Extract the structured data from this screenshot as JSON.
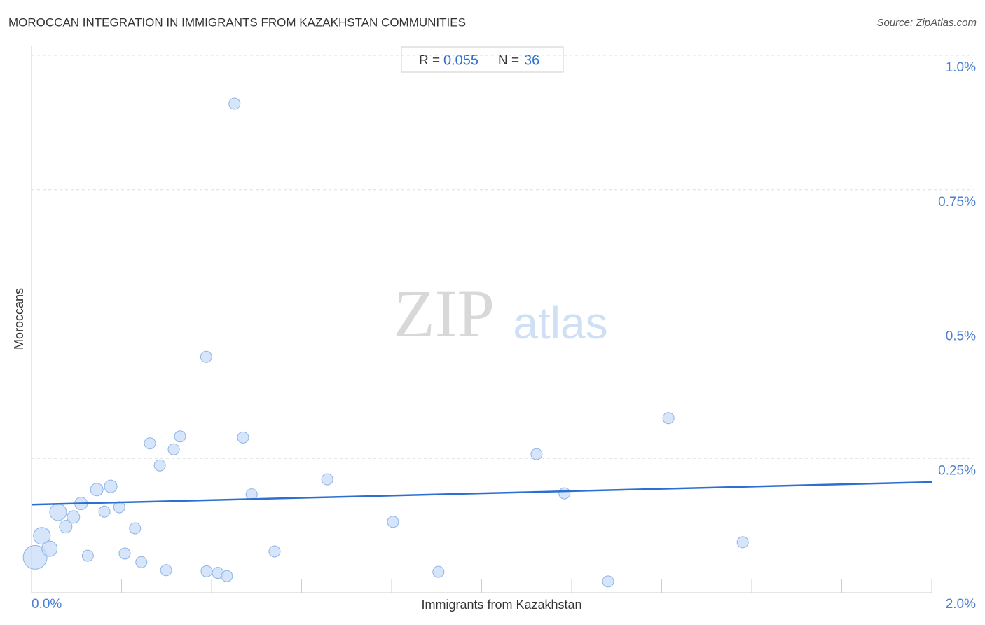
{
  "chart_data": {
    "type": "scatter",
    "title": "MOROCCAN INTEGRATION IN IMMIGRANTS FROM KAZAKHSTAN COMMUNITIES",
    "source": "Source: ZipAtlas.com",
    "x_label": "Immigrants from Kazakhstan",
    "y_label": "Moroccans",
    "watermark": {
      "zip": "ZIP",
      "atlas": "atlas"
    },
    "stats": {
      "r_label": "R =",
      "r": 0.055,
      "n_label": "N =",
      "n": 36
    },
    "xlim": [
      0,
      2.0
    ],
    "ylim": [
      0,
      1.0
    ],
    "xticks": [
      {
        "value": 0,
        "label": "0.0%"
      },
      {
        "value": 2.0,
        "label": "2.0%"
      }
    ],
    "xminorticks": [
      0.2,
      0.4,
      0.6,
      0.8,
      1.0,
      1.2,
      1.4,
      1.6,
      1.8,
      2.0
    ],
    "yticks": [
      {
        "value": 1.0,
        "label": "1.0%"
      },
      {
        "value": 0.75,
        "label": "0.75%"
      },
      {
        "value": 0.5,
        "label": "0.5%"
      },
      {
        "value": 0.25,
        "label": "0.25%"
      }
    ],
    "grid": true,
    "color": "#c5daf6",
    "stroke": "#8db4e6",
    "trend_color": "#2a6fd1",
    "trend": {
      "x": [
        0,
        2.0
      ],
      "y": [
        0.164,
        0.206
      ]
    },
    "x": [
      0.008,
      0.023,
      0.04,
      0.059,
      0.076,
      0.093,
      0.11,
      0.125,
      0.145,
      0.162,
      0.176,
      0.195,
      0.207,
      0.23,
      0.244,
      0.263,
      0.285,
      0.299,
      0.316,
      0.33,
      0.388,
      0.389,
      0.414,
      0.434,
      0.451,
      0.47,
      0.489,
      0.54,
      0.657,
      0.803,
      0.904,
      1.122,
      1.184,
      1.281,
      1.415,
      1.58
    ],
    "y": [
      0.066,
      0.106,
      0.082,
      0.15,
      0.123,
      0.141,
      0.166,
      0.069,
      0.192,
      0.151,
      0.198,
      0.159,
      0.073,
      0.12,
      0.057,
      0.278,
      0.237,
      0.042,
      0.267,
      0.291,
      0.439,
      0.04,
      0.037,
      0.031,
      0.91,
      0.289,
      0.183,
      0.077,
      0.211,
      0.132,
      0.039,
      0.258,
      0.185,
      0.021,
      0.325,
      0.094
    ],
    "sizes": [
      17,
      12,
      11,
      12,
      9,
      9,
      9,
      8,
      9,
      8,
      9,
      8,
      8,
      8,
      8,
      8,
      8,
      8,
      8,
      8,
      8,
      8,
      8,
      8,
      8,
      8,
      8,
      8,
      8,
      8,
      8,
      8,
      8,
      8,
      8,
      8
    ]
  }
}
